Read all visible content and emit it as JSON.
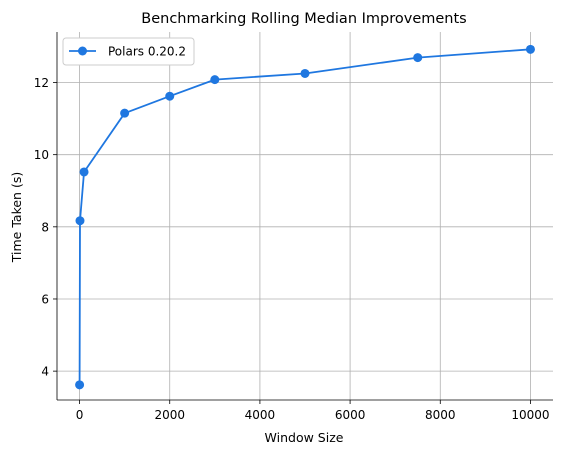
{
  "chart_data": {
    "type": "line",
    "title": "Benchmarking Rolling Median Improvements",
    "xlabel": "Window Size",
    "ylabel": "Time Taken (s)",
    "xlim": [
      -500,
      10500
    ],
    "ylim": [
      3.2,
      13.4
    ],
    "xticks": [
      0,
      2000,
      4000,
      6000,
      8000,
      10000
    ],
    "yticks": [
      4,
      6,
      8,
      10,
      12
    ],
    "grid": true,
    "legend_position": "top-left",
    "series": [
      {
        "name": "Polars 0.20.2",
        "color": "#1f77e0",
        "marker": "circle",
        "x": [
          1,
          10,
          100,
          1000,
          2000,
          3000,
          5000,
          7500,
          10000
        ],
        "y": [
          3.62,
          8.17,
          9.52,
          11.15,
          11.62,
          12.08,
          12.25,
          12.69,
          12.92
        ]
      }
    ]
  }
}
